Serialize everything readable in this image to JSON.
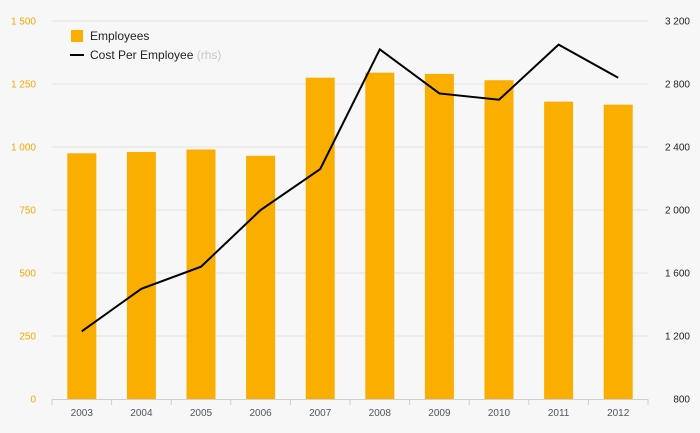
{
  "chart_data": {
    "type": "bar",
    "categories": [
      "2003",
      "2004",
      "2005",
      "2006",
      "2007",
      "2008",
      "2009",
      "2010",
      "2011",
      "2012"
    ],
    "series": [
      {
        "name": "Employees",
        "type": "bar",
        "axis": "left",
        "color": "#f9ae00",
        "values": [
          975,
          980,
          990,
          965,
          1275,
          1295,
          1290,
          1265,
          1180,
          1168
        ]
      },
      {
        "name": "Cost Per Employee",
        "type": "line",
        "axis": "right",
        "color": "#000000",
        "values": [
          1230,
          1500,
          1640,
          2000,
          2260,
          3020,
          2740,
          2700,
          3050,
          2840
        ]
      }
    ],
    "legend": {
      "position": "top-left",
      "items": [
        {
          "label": "Employees",
          "note": ""
        },
        {
          "label": "Cost Per Employee",
          "note": "(rhs)"
        }
      ]
    },
    "y_left": {
      "ylim": [
        0,
        1500
      ],
      "ticks": [
        0,
        250,
        500,
        750,
        1000,
        1250,
        1500
      ],
      "tick_labels": [
        "0",
        "250",
        "500",
        "750",
        "1 000",
        "1 250",
        "1 500"
      ],
      "color": "#f5a800"
    },
    "y_right": {
      "ylim": [
        800,
        3200
      ],
      "ticks": [
        800,
        1200,
        1600,
        2000,
        2400,
        2800,
        3200
      ],
      "tick_labels": [
        "800",
        "1 200",
        "1 600",
        "2 000",
        "2 400",
        "2 800",
        "3 200"
      ],
      "color": "#222222"
    },
    "grid": true,
    "title": "",
    "xlabel": "",
    "ylabel": ""
  }
}
